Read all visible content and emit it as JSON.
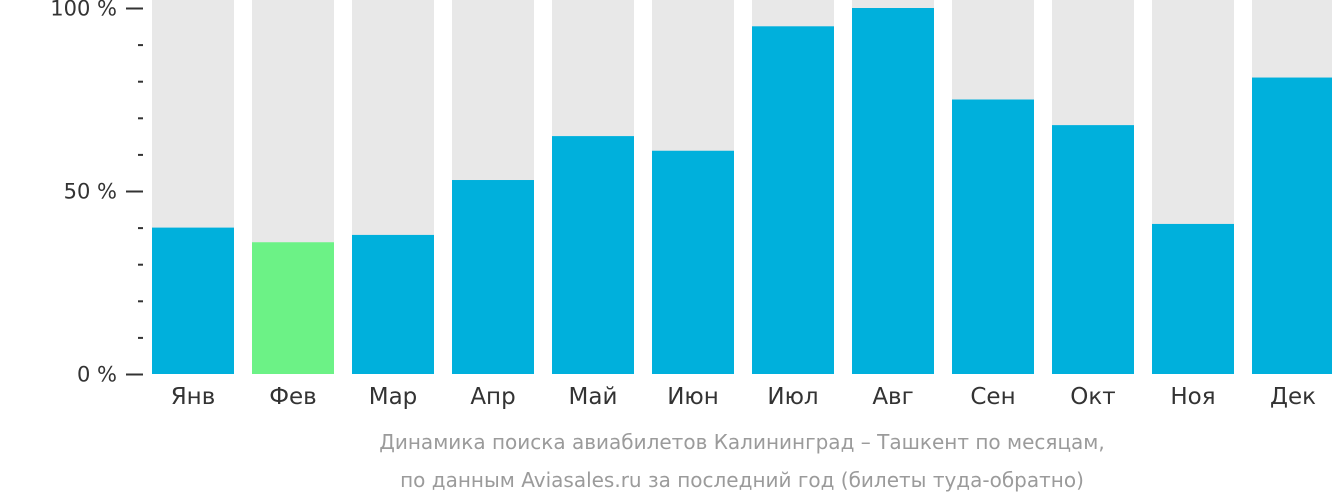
{
  "chart_data": {
    "type": "bar",
    "categories": [
      "Янв",
      "Фев",
      "Мар",
      "Апр",
      "Май",
      "Июн",
      "Июл",
      "Авг",
      "Сен",
      "Окт",
      "Ноя",
      "Дек"
    ],
    "values": [
      40,
      36,
      38,
      53,
      65,
      61,
      95,
      100,
      75,
      68,
      41,
      81
    ],
    "highlight_index": 1,
    "ylim": [
      0,
      100
    ],
    "y_ticks": [
      {
        "value": 100,
        "label": "100 %"
      },
      {
        "value": 50,
        "label": "50 %"
      },
      {
        "value": 0,
        "label": "0 %"
      }
    ],
    "y_minor_step": 10,
    "grid": false,
    "colors": {
      "bar": "#00b0dc",
      "highlight": "#6cf286",
      "background": "#e8e8e8",
      "axis": "#333333"
    }
  },
  "caption": {
    "line1": "Динамика поиска авиабилетов Калининград – Ташкент по месяцам,",
    "line2": "по данным Aviasales.ru за последний год (билеты туда-обратно)"
  }
}
